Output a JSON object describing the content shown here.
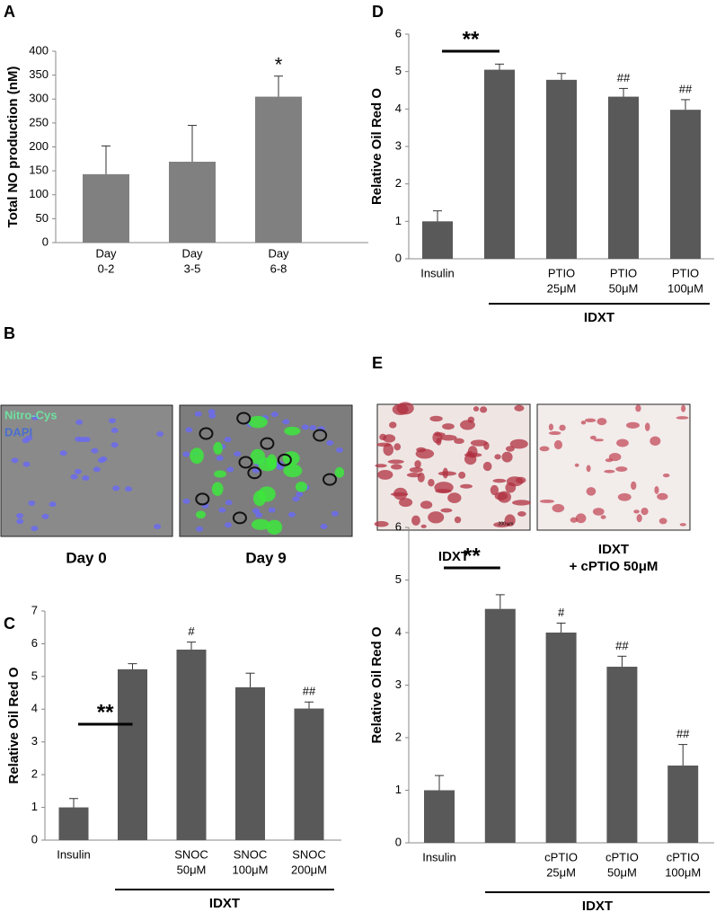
{
  "panel_labels": [
    "A",
    "B",
    "C",
    "D",
    "E"
  ],
  "chart_data": [
    {
      "type": "bar",
      "y_label": "Total NO production (nM)",
      "color": "#808080",
      "categories": [
        [
          "Day",
          "0-2"
        ],
        [
          "Day",
          "3-5"
        ],
        [
          "Day",
          "6-8"
        ]
      ],
      "values": [
        143,
        169,
        305
      ],
      "errors": [
        59,
        76,
        43
      ],
      "marks": [
        null,
        null,
        "*"
      ],
      "ylim": [
        0,
        400
      ],
      "yticks": [
        0,
        50,
        100,
        150,
        200,
        250,
        300,
        350,
        400
      ]
    },
    {
      "type": "bar",
      "y_label": "Relative Oil Red O",
      "color": "#595959",
      "categories": [
        [
          "Insulin"
        ],
        null,
        [
          "SNOC",
          "50μM"
        ],
        [
          "SNOC",
          "100μM"
        ],
        [
          "SNOC",
          "200μM"
        ]
      ],
      "values": [
        1.0,
        5.22,
        5.82,
        4.67,
        4.02
      ],
      "errors": [
        0.27,
        0.17,
        0.23,
        0.43,
        0.2
      ],
      "marks": [
        null,
        null,
        "#",
        null,
        "##"
      ],
      "bracket_label": "**",
      "group_label": "IDXT",
      "ylim": [
        0,
        7
      ],
      "yticks": [
        0,
        1,
        2,
        3,
        4,
        5,
        6,
        7
      ]
    },
    {
      "type": "bar",
      "y_label": "Relative Oil Red O",
      "color": "#595959",
      "categories": [
        [
          "Insulin"
        ],
        null,
        [
          "PTIO",
          "25μM"
        ],
        [
          "PTIO",
          "50μM"
        ],
        [
          "PTIO",
          "100μM"
        ]
      ],
      "values": [
        1.0,
        5.05,
        4.78,
        4.33,
        3.98
      ],
      "errors": [
        0.28,
        0.15,
        0.17,
        0.22,
        0.27
      ],
      "marks": [
        null,
        null,
        null,
        "##",
        "##"
      ],
      "bracket_label": "**",
      "group_label": "IDXT",
      "ylim": [
        0,
        6
      ],
      "yticks": [
        0,
        1,
        2,
        3,
        4,
        5,
        6
      ]
    },
    {
      "type": "bar",
      "y_label": "Relative Oil Red O",
      "color": "#595959",
      "categories": [
        [
          "Insulin"
        ],
        null,
        [
          "cPTIO",
          "25μM"
        ],
        [
          "cPTIO",
          "50μM"
        ],
        [
          "cPTIO",
          "100μM"
        ]
      ],
      "values": [
        1.0,
        4.45,
        4.0,
        3.35,
        1.47
      ],
      "errors": [
        0.28,
        0.27,
        0.18,
        0.2,
        0.4
      ],
      "marks": [
        null,
        null,
        "#",
        "##",
        "##"
      ],
      "bracket_label": "**",
      "group_label": "IDXT",
      "ylim": [
        0,
        6
      ],
      "yticks": [
        0,
        1,
        2,
        3,
        4,
        5,
        6
      ]
    }
  ],
  "images": {
    "fluorescence": {
      "stains": [
        "Nitro-Cys",
        "DAPI"
      ],
      "captions": [
        "Day 0",
        "Day 9"
      ]
    },
    "oil_red": {
      "scale_bar": "200 μm",
      "captions": [
        "IDXT",
        [
          "IDXT",
          "+ cPTIO 50μM"
        ]
      ]
    }
  }
}
